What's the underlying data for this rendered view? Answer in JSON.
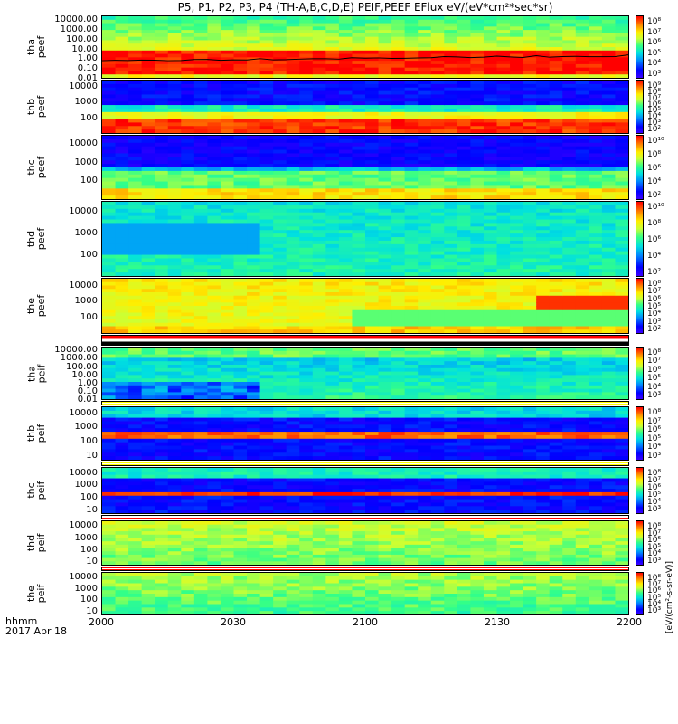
{
  "title": "P5, P1, P2, P3, P4 (TH-A,B,C,D,E) PEIF,PEEF EFlux eV/(eV*cm²*sec*sr)",
  "xaxis": {
    "label_line1": "hhmm",
    "label_line2": "2017 Apr 18",
    "ticks": [
      "2000",
      "2030",
      "2100",
      "2130",
      "2200"
    ]
  },
  "colorbar_unit": "[eV/(cm²-s-sr-eV)]",
  "chart_data": {
    "type": "heatmap",
    "time_range": [
      "2000",
      "2200"
    ],
    "yscale": "log",
    "panels": [
      {
        "probe": "tha",
        "product": "peef",
        "yticks": [
          "10000.00",
          "1000.00",
          "100.00",
          "10.00",
          "1.00",
          "0.10",
          "0.01"
        ],
        "ymin": 0.01,
        "ymax": 30000,
        "cticks": [
          "10⁸",
          "10⁷",
          "10⁶",
          "10⁵",
          "10⁴",
          "10³"
        ]
      },
      {
        "probe": "thb",
        "product": "peef",
        "yticks": [
          "10000",
          "1000",
          "100"
        ],
        "ymin": 10,
        "ymax": 30000,
        "cticks": [
          "10⁹",
          "10⁸",
          "10⁷",
          "10⁶",
          "10⁵",
          "10⁴",
          "10³",
          "10²"
        ]
      },
      {
        "probe": "thc",
        "product": "peef",
        "yticks": [
          "10000",
          "1000",
          "100"
        ],
        "ymin": 10,
        "ymax": 30000,
        "cticks": [
          "10¹⁰",
          "10⁸",
          "10⁶",
          "10⁴",
          "10²"
        ]
      },
      {
        "probe": "thd",
        "product": "peef",
        "yticks": [
          "10000",
          "1000",
          "100"
        ],
        "ymin": 10,
        "ymax": 30000,
        "cticks": [
          "10¹⁰",
          "10⁸",
          "10⁶",
          "10⁴",
          "10²"
        ]
      },
      {
        "probe": "the",
        "product": "peef",
        "yticks": [
          "10000",
          "1000",
          "100"
        ],
        "ymin": 10,
        "ymax": 30000,
        "cticks": [
          "10⁸",
          "10⁷",
          "10⁶",
          "10⁵",
          "10⁴",
          "10³",
          "10²"
        ]
      },
      {
        "probe": "tha",
        "product": "peif",
        "yticks": [
          "10000.00",
          "1000.00",
          "100.00",
          "10.00",
          "1.00",
          "0.10",
          "0.01"
        ],
        "ymin": 0.01,
        "ymax": 30000,
        "cticks": [
          "10⁸",
          "10⁷",
          "10⁶",
          "10⁵",
          "10⁴",
          "10³"
        ]
      },
      {
        "probe": "thb",
        "product": "peif",
        "yticks": [
          "10000",
          "1000",
          "100",
          "10"
        ],
        "ymin": 5,
        "ymax": 30000,
        "cticks": [
          "10⁸",
          "10⁷",
          "10⁶",
          "10⁵",
          "10⁴",
          "10³"
        ]
      },
      {
        "probe": "thc",
        "product": "peif",
        "yticks": [
          "10000",
          "1000",
          "100",
          "10"
        ],
        "ymin": 5,
        "ymax": 30000,
        "cticks": [
          "10⁸",
          "10⁷",
          "10⁶",
          "10⁵",
          "10⁴",
          "10³"
        ]
      },
      {
        "probe": "thd",
        "product": "peif",
        "yticks": [
          "10000",
          "1000",
          "100",
          "10"
        ],
        "ymin": 5,
        "ymax": 30000,
        "cticks": [
          "10⁸",
          "10⁷",
          "10⁶",
          "10⁵",
          "10⁴",
          "10³"
        ]
      },
      {
        "probe": "the",
        "product": "peif",
        "yticks": [
          "10000",
          "1000",
          "100",
          "10"
        ],
        "ymin": 5,
        "ymax": 30000,
        "cticks": [
          "10⁸",
          "10⁷",
          "10⁶",
          "10⁵",
          "10⁴",
          "10³"
        ]
      }
    ]
  }
}
